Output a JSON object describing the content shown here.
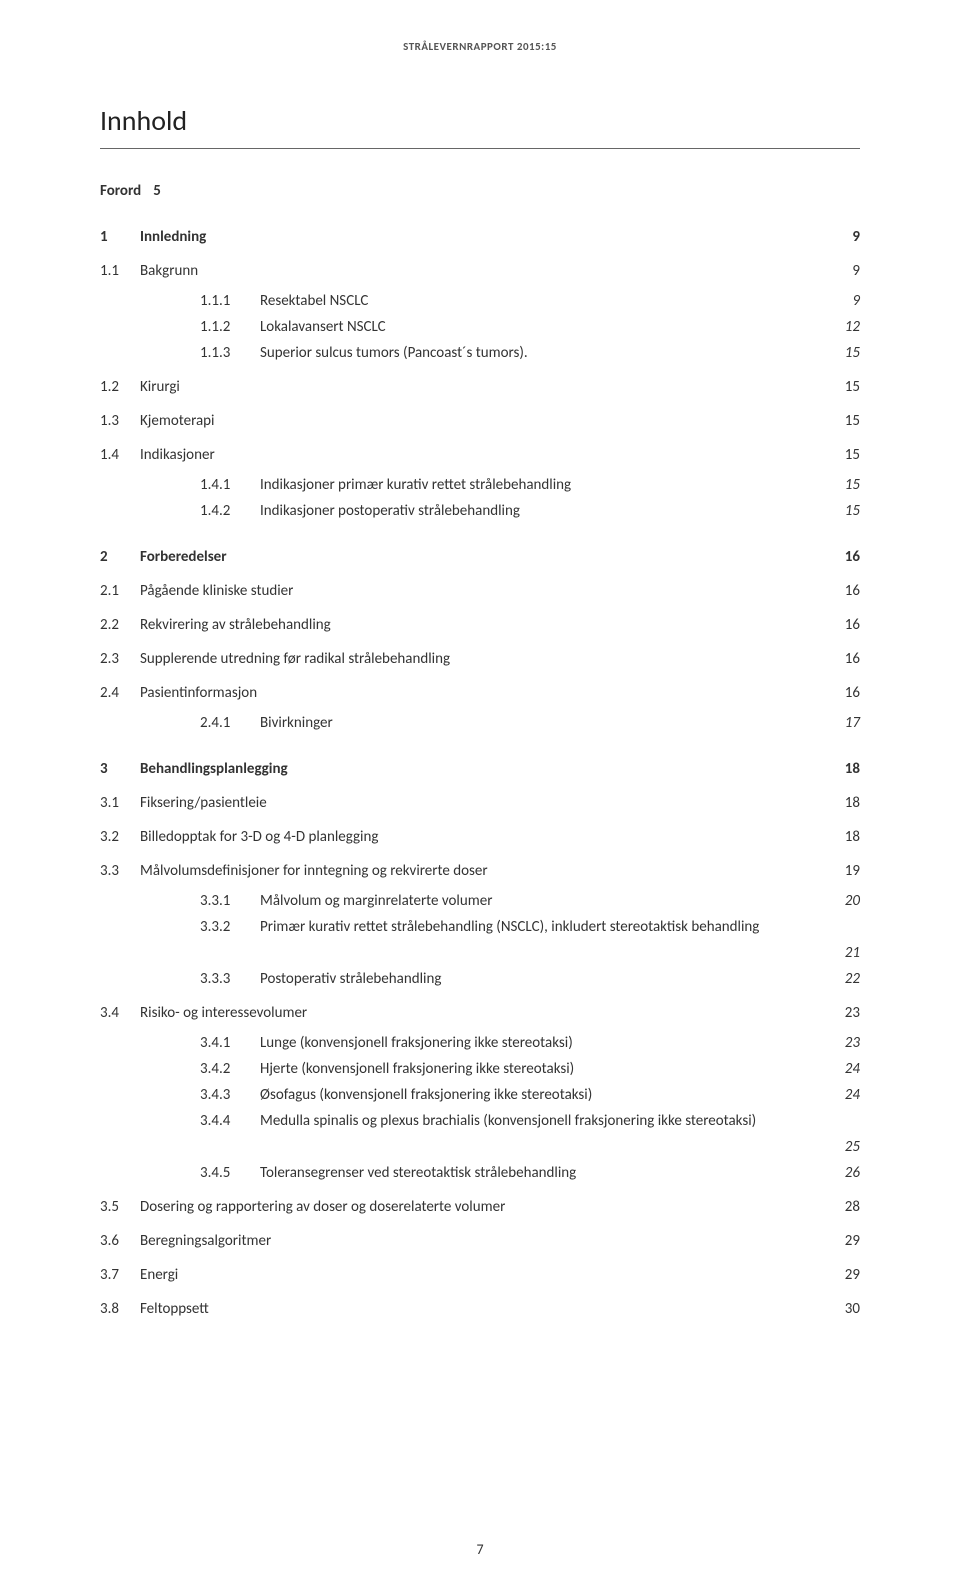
{
  "header": "STRÅLEVERNRAPPORT 2015:15",
  "title": "Innhold",
  "forord": {
    "label": "Forord",
    "page": "5"
  },
  "toc": [
    {
      "level": 1,
      "num": "1",
      "label": "Innledning",
      "page": "9"
    },
    {
      "level": 2,
      "num": "1.1",
      "label": "Bakgrunn",
      "page": "9"
    },
    {
      "level": 3,
      "num": "1.1.1",
      "label": "Resektabel NSCLC",
      "page": "9"
    },
    {
      "level": 3,
      "num": "1.1.2",
      "label": "Lokalavansert NSCLC",
      "page": "12"
    },
    {
      "level": 3,
      "num": "1.1.3",
      "label": "Superior sulcus tumors (Pancoast´s tumors).",
      "page": "15"
    },
    {
      "level": 2,
      "num": "1.2",
      "label": "Kirurgi",
      "page": "15"
    },
    {
      "level": 2,
      "num": "1.3",
      "label": "Kjemoterapi",
      "page": "15"
    },
    {
      "level": 2,
      "num": "1.4",
      "label": "Indikasjoner",
      "page": "15"
    },
    {
      "level": 3,
      "num": "1.4.1",
      "label": "Indikasjoner primær kurativ rettet strålebehandling",
      "page": "15"
    },
    {
      "level": 3,
      "num": "1.4.2",
      "label": "Indikasjoner postoperativ strålebehandling",
      "page": "15"
    },
    {
      "level": 1,
      "num": "2",
      "label": "Forberedelser",
      "page": "16"
    },
    {
      "level": 2,
      "num": "2.1",
      "label": "Pågående kliniske studier",
      "page": "16"
    },
    {
      "level": 2,
      "num": "2.2",
      "label": "Rekvirering av strålebehandling",
      "page": "16"
    },
    {
      "level": 2,
      "num": "2.3",
      "label": "Supplerende utredning før radikal strålebehandling",
      "page": "16"
    },
    {
      "level": 2,
      "num": "2.4",
      "label": "Pasientinformasjon",
      "page": "16"
    },
    {
      "level": 3,
      "num": "2.4.1",
      "label": "Bivirkninger",
      "page": "17"
    },
    {
      "level": 1,
      "num": "3",
      "label": "Behandlingsplanlegging",
      "page": "18"
    },
    {
      "level": 2,
      "num": "3.1",
      "label": "Fiksering/pasientleie",
      "page": "18"
    },
    {
      "level": 2,
      "num": "3.2",
      "label": "Billedopptak for 3-D og 4-D planlegging",
      "page": "18"
    },
    {
      "level": 2,
      "num": "3.3",
      "label": "Målvolumsdefinisjoner for inntegning og rekvirerte doser",
      "page": "19"
    },
    {
      "level": 3,
      "num": "3.3.1",
      "label": "Målvolum og marginrelaterte volumer",
      "page": "20"
    },
    {
      "level": 3,
      "num": "3.3.2",
      "label": "Primær kurativ rettet strålebehandling (NSCLC), inkludert stereotaktisk behandling",
      "page": "21",
      "wrap": true
    },
    {
      "level": 3,
      "num": "3.3.3",
      "label": "Postoperativ strålebehandling",
      "page": "22"
    },
    {
      "level": 2,
      "num": "3.4",
      "label": "Risiko- og interessevolumer",
      "page": "23"
    },
    {
      "level": 3,
      "num": "3.4.1",
      "label": "Lunge (konvensjonell fraksjonering ikke stereotaksi)",
      "page": "23"
    },
    {
      "level": 3,
      "num": "3.4.2",
      "label": "Hjerte (konvensjonell fraksjonering ikke stereotaksi)",
      "page": "24"
    },
    {
      "level": 3,
      "num": "3.4.3",
      "label": "Øsofagus (konvensjonell fraksjonering ikke stereotaksi)",
      "page": "24"
    },
    {
      "level": 3,
      "num": "3.4.4",
      "label": "Medulla spinalis og plexus brachialis (konvensjonell fraksjonering ikke stereotaksi)",
      "page": "25",
      "wrap": true
    },
    {
      "level": 3,
      "num": "3.4.5",
      "label": "Toleransegrenser ved stereotaktisk strålebehandling",
      "page": "26"
    },
    {
      "level": 2,
      "num": "3.5",
      "label": "Dosering og rapportering av doser og doserelaterte volumer",
      "page": "28"
    },
    {
      "level": 2,
      "num": "3.6",
      "label": "Beregningsalgoritmer",
      "page": "29"
    },
    {
      "level": 2,
      "num": "3.7",
      "label": "Energi",
      "page": "29"
    },
    {
      "level": 2,
      "num": "3.8",
      "label": "Feltoppsett",
      "page": "30"
    }
  ],
  "footer_page": "7"
}
